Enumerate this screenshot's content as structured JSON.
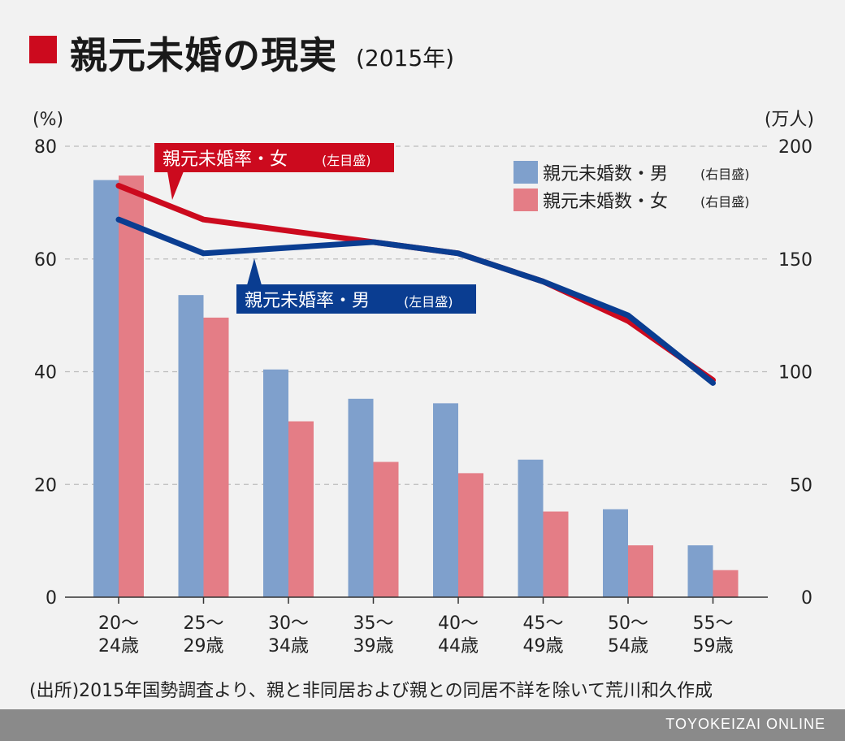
{
  "title": {
    "main": "親元未婚の現実",
    "sub": "(2015年)"
  },
  "colors": {
    "accent_red": "#cc0a1e",
    "male_bar": "#7fa0cc",
    "female_bar": "#e47d86",
    "male_line": "#0a3d91",
    "female_line": "#cc0a1e",
    "grid": "#bbbbbb"
  },
  "chart_data": {
    "type": "bar+line",
    "categories": [
      "20〜\n24歳",
      "25〜\n29歳",
      "30〜\n34歳",
      "35〜\n39歳",
      "40〜\n44歳",
      "45〜\n49歳",
      "50〜\n54歳",
      "55〜\n59歳"
    ],
    "left_axis": {
      "unit": "(%)",
      "ticks": [
        0,
        20,
        40,
        60,
        80
      ],
      "range": [
        0,
        80
      ]
    },
    "right_axis": {
      "unit": "(万人)",
      "ticks": [
        0,
        50,
        100,
        150,
        200
      ],
      "range": [
        0,
        200
      ]
    },
    "bar_series": [
      {
        "name": "親元未婚数・男",
        "suffix": "(右目盛)",
        "values": [
          185,
          134,
          101,
          88,
          86,
          61,
          39,
          23
        ]
      },
      {
        "name": "親元未婚数・女",
        "suffix": "(右目盛)",
        "values": [
          187,
          124,
          78,
          60,
          55,
          38,
          23,
          12
        ]
      }
    ],
    "line_series": [
      {
        "name": "親元未婚率・女",
        "suffix": "(左目盛)",
        "values": [
          73,
          67,
          65,
          63,
          61,
          56,
          49,
          38.5
        ]
      },
      {
        "name": "親元未婚率・男",
        "suffix": "(左目盛)",
        "values": [
          67,
          61,
          62,
          63,
          61,
          56,
          50,
          38
        ]
      }
    ]
  },
  "source": "(出所)2015年国勢調査より、親と非同居および親との同居不詳を除いて荒川和久作成",
  "footer": "TOYOKEIZAI ONLINE"
}
